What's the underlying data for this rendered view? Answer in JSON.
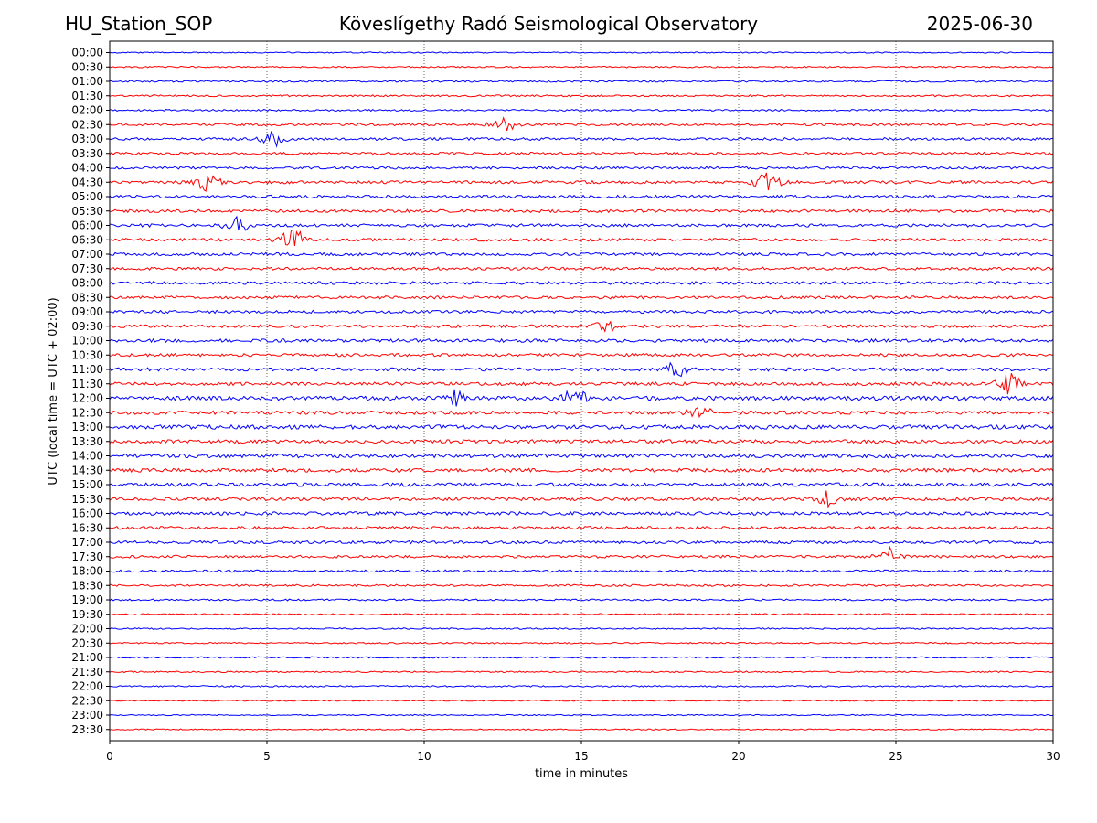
{
  "header": {
    "station": "HU_Station_SOP",
    "observatory": "Köveslígethy Radó Seismological Observatory",
    "date": "2025-06-30"
  },
  "chart_data": {
    "type": "line",
    "xlabel": "time in minutes",
    "ylabel": "UTC (local time = UTC + 02:00)",
    "xlim": [
      0,
      30
    ],
    "xticks": [
      0,
      5,
      10,
      15,
      20,
      25,
      30
    ],
    "grid": "vertical dotted lines at x ticks",
    "series_colors": [
      "#0000ff",
      "#ff0000"
    ],
    "rows": [
      "00:00",
      "00:30",
      "01:00",
      "01:30",
      "02:00",
      "02:30",
      "03:00",
      "03:30",
      "04:00",
      "04:30",
      "05:00",
      "05:30",
      "06:00",
      "06:30",
      "07:00",
      "07:30",
      "08:00",
      "08:30",
      "09:00",
      "09:30",
      "10:00",
      "10:30",
      "11:00",
      "11:30",
      "12:00",
      "12:30",
      "13:00",
      "13:30",
      "14:00",
      "14:30",
      "15:00",
      "15:30",
      "16:00",
      "16:30",
      "17:00",
      "17:30",
      "18:00",
      "18:30",
      "19:00",
      "19:30",
      "20:00",
      "20:30",
      "21:00",
      "21:30",
      "22:00",
      "22:30",
      "23:00",
      "23:30"
    ],
    "noise_level": [
      0.4,
      0.5,
      0.6,
      0.6,
      0.6,
      0.8,
      0.9,
      0.8,
      0.9,
      1.0,
      1.0,
      1.0,
      1.0,
      1.0,
      1.0,
      1.0,
      1.0,
      1.0,
      1.0,
      1.0,
      1.1,
      1.0,
      1.1,
      1.1,
      1.4,
      1.2,
      1.4,
      1.2,
      1.3,
      1.2,
      1.2,
      1.1,
      1.1,
      1.0,
      1.0,
      0.9,
      0.8,
      0.7,
      0.6,
      0.5,
      0.5,
      0.5,
      0.5,
      0.5,
      0.5,
      0.4,
      0.4,
      0.4
    ],
    "bursts": [
      {
        "row": "02:30",
        "x": 12.5,
        "amp": 2.0
      },
      {
        "row": "03:00",
        "x": 5.2,
        "amp": 1.8
      },
      {
        "row": "04:30",
        "x": 3.1,
        "amp": 2.2
      },
      {
        "row": "04:30",
        "x": 20.9,
        "amp": 2.5
      },
      {
        "row": "06:00",
        "x": 4.0,
        "amp": 2.2
      },
      {
        "row": "06:30",
        "x": 5.8,
        "amp": 3.0
      },
      {
        "row": "09:30",
        "x": 15.8,
        "amp": 1.8
      },
      {
        "row": "11:00",
        "x": 18.0,
        "amp": 1.8
      },
      {
        "row": "11:30",
        "x": 28.6,
        "amp": 2.5
      },
      {
        "row": "12:00",
        "x": 14.8,
        "amp": 2.2
      },
      {
        "row": "12:00",
        "x": 11.0,
        "amp": 2.0
      },
      {
        "row": "12:30",
        "x": 18.8,
        "amp": 2.0
      },
      {
        "row": "15:30",
        "x": 22.8,
        "amp": 1.8
      },
      {
        "row": "17:30",
        "x": 24.8,
        "amp": 2.2
      }
    ]
  }
}
